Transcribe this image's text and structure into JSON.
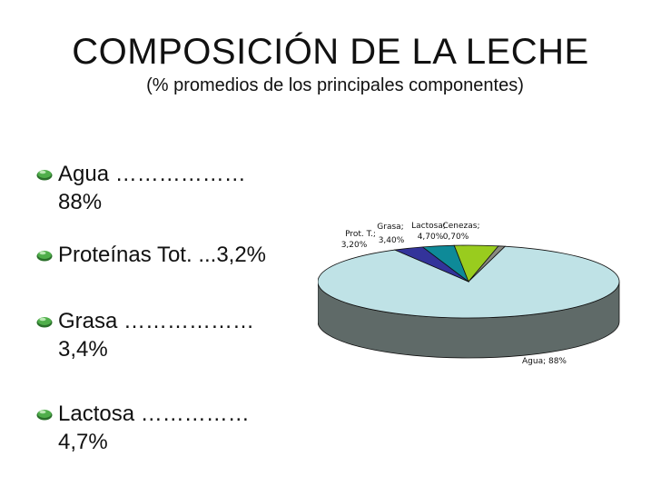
{
  "slide": {
    "title": "COMPOSICIÓN DE LA LECHE",
    "subtitle": "(% promedios de los principales componentes)"
  },
  "bullets": [
    {
      "line1": "Agua ………………",
      "line2": "88%"
    },
    {
      "line1": "Proteínas Tot. ...3,2%",
      "line2": ""
    },
    {
      "line1": "Grasa ………………",
      "line2": "3,4%"
    },
    {
      "line1": "Lactosa ……………",
      "line2": "4,7%"
    }
  ],
  "icons": {
    "bullet": "green-gem-bullet-icon"
  },
  "chart_data": {
    "type": "pie",
    "style": "3d",
    "slices": [
      {
        "label": "Agua",
        "value": 88,
        "text": "Agua; 88%",
        "color": "#bfe2e6"
      },
      {
        "label": "Prot. T.",
        "value": 3.2,
        "text": "Prot. T.; 3,20%",
        "label_line1": "Prot. T.;",
        "label_line2": "3,20%",
        "color": "#33339a"
      },
      {
        "label": "Grasa",
        "value": 3.4,
        "text": "Grasa; 3,40%",
        "label_line1": "Grasa;",
        "label_line2": "3,40%",
        "color": "#0e8a98"
      },
      {
        "label": "Lactosa",
        "value": 4.7,
        "text": "Lactosa; 4,70%",
        "label_line1": "Lactosa;",
        "label_line2": "4,70%",
        "color": "#99cc1e"
      },
      {
        "label": "Cenezas",
        "value": 0.7,
        "text": "Cenezas; 0,70%",
        "label_line1": "Cenezas;",
        "label_line2": "0,70%",
        "color": "#8a8a80"
      }
    ]
  }
}
